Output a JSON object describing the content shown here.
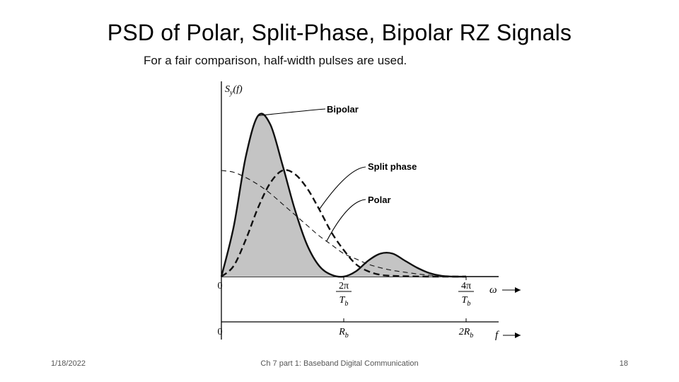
{
  "slide": {
    "title": "PSD of Polar, Split-Phase, Bipolar RZ Signals",
    "subtitle": "For a fair comparison, half-width pulses are used."
  },
  "footer": {
    "date": "1/18/2022",
    "center": "Ch 7 part 1: Baseband Digital Communication",
    "page": "18"
  },
  "chart_data": {
    "type": "line",
    "ylabel": "S_y(f)",
    "axes": {
      "omega": {
        "label": "ω",
        "ticks": [
          {
            "value": 0,
            "label": "0"
          },
          {
            "value": 1,
            "label": "2π / T_b"
          },
          {
            "value": 2,
            "label": "4π / T_b"
          }
        ]
      },
      "f": {
        "label": "f",
        "ticks": [
          {
            "value": 0,
            "label": "0"
          },
          {
            "value": 1,
            "label": "R_b"
          },
          {
            "value": 2,
            "label": "2R_b"
          }
        ]
      }
    },
    "xlim": [
      0,
      2.1
    ],
    "ylim": [
      0,
      1.0
    ],
    "series": [
      {
        "name": "Bipolar",
        "style": "solid-filled",
        "x": [
          0,
          0.1,
          0.2,
          0.3,
          0.4,
          0.5,
          0.6,
          0.7,
          0.8,
          0.9,
          1.0,
          1.1,
          1.2,
          1.3,
          1.4,
          1.5,
          1.6,
          1.7,
          1.8,
          1.9,
          2.0
        ],
        "y": [
          0,
          0.28,
          0.68,
          0.91,
          0.86,
          0.63,
          0.38,
          0.18,
          0.06,
          0.01,
          0,
          0.03,
          0.09,
          0.13,
          0.13,
          0.09,
          0.05,
          0.02,
          0.004,
          0,
          0
        ]
      },
      {
        "name": "Split phase",
        "style": "bold-dashed",
        "x": [
          0,
          0.1,
          0.2,
          0.3,
          0.4,
          0.5,
          0.6,
          0.7,
          0.8,
          0.9,
          1.0,
          1.1,
          1.2,
          1.3,
          1.4,
          1.5,
          1.6,
          1.7,
          1.8,
          1.9,
          2.0
        ],
        "y": [
          0,
          0.06,
          0.21,
          0.39,
          0.53,
          0.6,
          0.58,
          0.5,
          0.38,
          0.25,
          0.15,
          0.07,
          0.03,
          0.01,
          0.004,
          0.002,
          0.001,
          0,
          0,
          0,
          0
        ]
      },
      {
        "name": "Polar",
        "style": "thin-dashed",
        "x": [
          0,
          0.1,
          0.2,
          0.3,
          0.4,
          0.5,
          0.6,
          0.7,
          0.8,
          0.9,
          1.0,
          1.1,
          1.2,
          1.3,
          1.4,
          1.5,
          1.6,
          1.7,
          1.8,
          1.9,
          2.0
        ],
        "y": [
          0.6,
          0.59,
          0.56,
          0.52,
          0.47,
          0.41,
          0.35,
          0.29,
          0.23,
          0.18,
          0.13,
          0.1,
          0.07,
          0.05,
          0.035,
          0.025,
          0.015,
          0.008,
          0.004,
          0.001,
          0
        ]
      }
    ],
    "annotations": [
      {
        "text": "Bipolar",
        "series": "Bipolar"
      },
      {
        "text": "Split phase",
        "series": "Split phase"
      },
      {
        "text": "Polar",
        "series": "Polar"
      }
    ],
    "colors": {
      "fill": "#c4c4c4",
      "line": "#111111"
    }
  }
}
